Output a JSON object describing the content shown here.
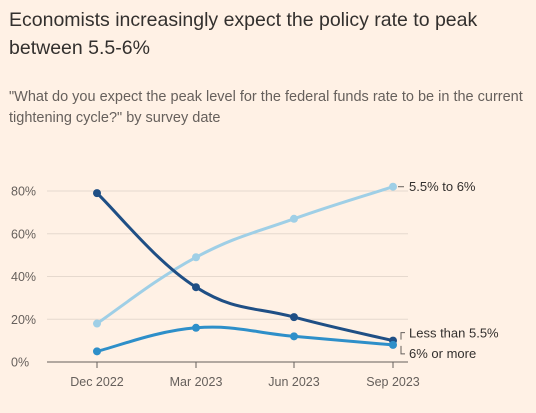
{
  "header": {
    "title": "Economists increasingly expect the policy rate to peak between 5.5-6%",
    "subtitle": "\"What do you expect the peak level for the federal funds rate to be in the current tightening cycle?\" by survey date"
  },
  "chart_data": {
    "type": "line",
    "title": "Economists increasingly expect the policy rate to peak between 5.5-6%",
    "subtitle": "\"What do you expect the peak level for the federal funds rate to be in the current tightening cycle?\" by survey date",
    "categories": [
      "Dec 2022",
      "Mar 2023",
      "Jun 2023",
      "Sep 2023"
    ],
    "yticks": [
      "0%",
      "20%",
      "40%",
      "60%",
      "80%"
    ],
    "ylim": [
      0,
      80
    ],
    "grid": true,
    "legend": "direct labels at line ends",
    "series": [
      {
        "name": "5.5% to 6%",
        "values": [
          18,
          49,
          67,
          82
        ],
        "color": "#9fcfe6"
      },
      {
        "name": "Less than 5.5%",
        "values": [
          79,
          35,
          21,
          10
        ],
        "color": "#1f4f85"
      },
      {
        "name": "6% or more",
        "values": [
          5,
          16,
          12,
          8
        ],
        "color": "#2e8fc9"
      }
    ]
  }
}
